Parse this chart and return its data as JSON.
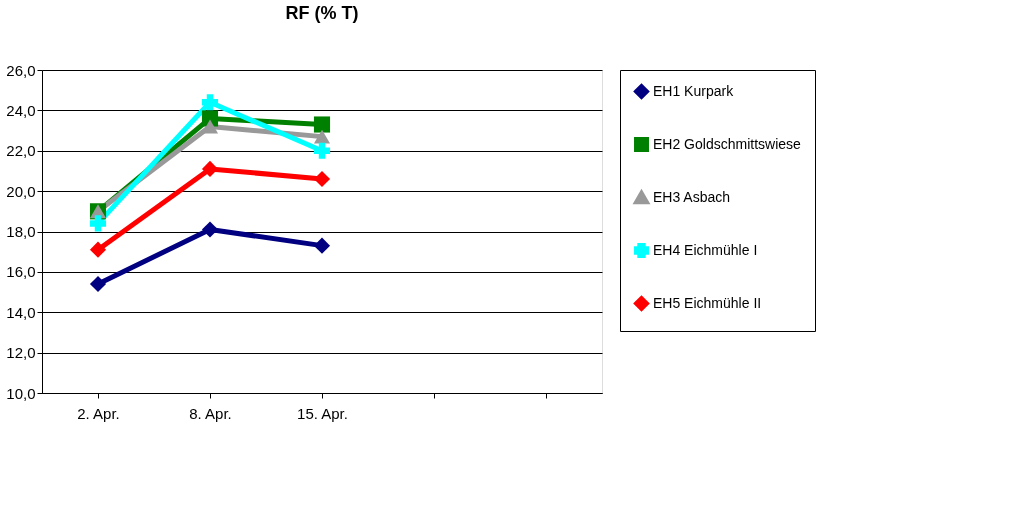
{
  "chart_data": {
    "type": "line",
    "title": "RF (% T)",
    "categories": [
      "2. Apr.",
      "8. Apr.",
      "15. Apr.",
      null,
      null
    ],
    "series": [
      {
        "name": "EH1 Kurpark",
        "color": "#000080",
        "marker": "diamond",
        "values": [
          15.4,
          18.1,
          17.3,
          null,
          null
        ]
      },
      {
        "name": "EH2 Goldschmittswiese",
        "color": "#008000",
        "marker": "square",
        "values": [
          19.0,
          23.6,
          23.3,
          null,
          null
        ]
      },
      {
        "name": "EH3 Asbach",
        "color": "#999999",
        "marker": "triangle",
        "values": [
          19.0,
          23.2,
          22.7,
          null,
          null
        ]
      },
      {
        "name": "EH4 Eichmühle I",
        "color": "#00ffff",
        "marker": "cross",
        "values": [
          18.4,
          24.4,
          22.0,
          null,
          null
        ]
      },
      {
        "name": "EH5 Eichmühle II",
        "color": "#ff0000",
        "marker": "diamond",
        "values": [
          17.1,
          21.1,
          20.6,
          null,
          null
        ]
      }
    ],
    "ylim": [
      10,
      26
    ],
    "yticks": [
      {
        "value": 10,
        "label": "10,0"
      },
      {
        "value": 12,
        "label": "12,0"
      },
      {
        "value": 14,
        "label": "14,0"
      },
      {
        "value": 16,
        "label": "16,0"
      },
      {
        "value": 18,
        "label": "18,0"
      },
      {
        "value": 20,
        "label": "20,0"
      },
      {
        "value": 22,
        "label": "22,0"
      },
      {
        "value": 24,
        "label": "24,0"
      },
      {
        "value": 26,
        "label": "26,0"
      }
    ],
    "grid": "y",
    "legend": "right",
    "line_style": "solid"
  }
}
